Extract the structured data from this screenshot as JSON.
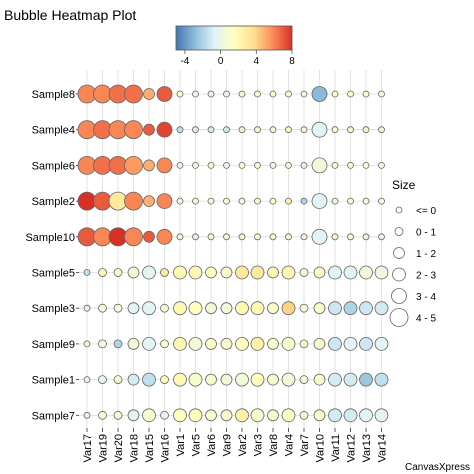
{
  "chart_data": {
    "type": "heatmap",
    "title": "Bubble Heatmap Plot",
    "credit": "CanvasXpress",
    "rows": [
      "Sample8",
      "Sample4",
      "Sample6",
      "Sample2",
      "Sample10",
      "Sample5",
      "Sample3",
      "Sample9",
      "Sample1",
      "Sample7"
    ],
    "columns": [
      "Var17",
      "Var19",
      "Var20",
      "Var18",
      "Var15",
      "Var16",
      "Var1",
      "Var5",
      "Var6",
      "Var9",
      "Var2",
      "Var3",
      "Var8",
      "Var4",
      "Var7",
      "Var10",
      "Var11",
      "Var12",
      "Var13",
      "Var14"
    ],
    "color_scale": {
      "ticks": [
        -4,
        0,
        4,
        8
      ],
      "range": [
        -5,
        8
      ],
      "colors": [
        "#4575b4",
        "#91bfdb",
        "#e0f3f8",
        "#ffffbf",
        "#fee090",
        "#fc8d59",
        "#d73027"
      ]
    },
    "size_legend": {
      "title": "Size",
      "labels": [
        "<= 0",
        "0 - 1",
        "1 - 2",
        "2 - 3",
        "3 - 4",
        "4 - 5"
      ]
    },
    "values": [
      [
        6,
        6,
        6.5,
        6.5,
        5,
        7,
        1.2,
        0.2,
        -0.5,
        -0.2,
        0.5,
        0.8,
        1,
        0.6,
        0.3,
        -3,
        1.5,
        1.5,
        1.2,
        0.3
      ],
      [
        6,
        6.5,
        6,
        6,
        7,
        7.5,
        -1.5,
        -1,
        -1,
        -1,
        0.5,
        0.8,
        0.5,
        1.2,
        0.5,
        -0.5,
        1.2,
        0.8,
        1,
        0.5
      ],
      [
        6,
        6.5,
        6.5,
        5.5,
        5,
        6,
        -0.5,
        0.5,
        0.8,
        -0.5,
        0.8,
        1,
        0.5,
        0.5,
        -0.2,
        0.5,
        1.2,
        1,
        0.8,
        0.5
      ],
      [
        8,
        7,
        3,
        6,
        5,
        6,
        0.5,
        0.8,
        0.5,
        0.8,
        0.5,
        1,
        1.5,
        2.5,
        -2,
        -0.5,
        0.2,
        1,
        0.8,
        0.5
      ],
      [
        7,
        6,
        8,
        6,
        7,
        6,
        0.5,
        -0.5,
        0.8,
        0.5,
        1,
        1,
        0.8,
        0.5,
        0.2,
        -0.5,
        0.8,
        0.5,
        0.2,
        -0.2
      ],
      [
        -1.5,
        2,
        1,
        0.5,
        -0.5,
        3,
        2,
        2,
        1.5,
        1,
        3,
        3,
        2,
        2,
        0.5,
        1,
        -0.5,
        -0.5,
        0.5,
        0.2
      ],
      [
        -0.2,
        0.5,
        0.5,
        -0.5,
        -0.5,
        0.5,
        2,
        1.5,
        0.5,
        0.5,
        2,
        2,
        1,
        4,
        0.5,
        1,
        -1.2,
        -2,
        -1.2,
        -1
      ],
      [
        0.5,
        0.5,
        -2,
        0.5,
        -0.5,
        1,
        2,
        0.5,
        1.2,
        1,
        1.5,
        2.5,
        1,
        1,
        1,
        1,
        -1.2,
        -0.5,
        -1.2,
        -0.5
      ],
      [
        -0.2,
        -0.2,
        1,
        -1,
        -1.5,
        1.5,
        2,
        1,
        1,
        0.5,
        0.5,
        1.5,
        1,
        0.5,
        0.5,
        1,
        -1,
        -1,
        -2.5,
        -1.5
      ],
      [
        0.2,
        0.5,
        0.5,
        -0.5,
        1,
        -0.5,
        1.5,
        1.5,
        1,
        1,
        2.5,
        1,
        1,
        1.5,
        0.5,
        1,
        -1,
        -1,
        -0.5,
        -0.5
      ]
    ],
    "sizes": [
      [
        5,
        5,
        5,
        5,
        2,
        4,
        0,
        0,
        0,
        0,
        0,
        0,
        0,
        0,
        0,
        4,
        0,
        0,
        0,
        0
      ],
      [
        5,
        5,
        5,
        5,
        2,
        4,
        0,
        0,
        0,
        0,
        0,
        0,
        0,
        0,
        0,
        4,
        0,
        0,
        0,
        0
      ],
      [
        5,
        5,
        5,
        5,
        2,
        4,
        0,
        0,
        0,
        0,
        0,
        0,
        0,
        0,
        0,
        4,
        0,
        0,
        0,
        0
      ],
      [
        5,
        5,
        5,
        5,
        2,
        4,
        0,
        0,
        0,
        0,
        0,
        0,
        0,
        0,
        0,
        4,
        0,
        0,
        0,
        0
      ],
      [
        5,
        5,
        5,
        5,
        2,
        4,
        0,
        0,
        0,
        0,
        0,
        0,
        0,
        0,
        0,
        4,
        0,
        0,
        0,
        0
      ],
      [
        0,
        1,
        1,
        2,
        3,
        1,
        3,
        3,
        2,
        2,
        3,
        3,
        2,
        3,
        1,
        2,
        3,
        3,
        3,
        3
      ],
      [
        0,
        1,
        1,
        2,
        3,
        1,
        3,
        3,
        2,
        2,
        3,
        3,
        2,
        3,
        1,
        2,
        3,
        3,
        3,
        3
      ],
      [
        0,
        1,
        1,
        2,
        3,
        1,
        3,
        3,
        2,
        2,
        3,
        3,
        2,
        3,
        1,
        2,
        3,
        3,
        3,
        3
      ],
      [
        0,
        1,
        1,
        2,
        3,
        1,
        3,
        3,
        2,
        2,
        3,
        3,
        2,
        3,
        1,
        2,
        3,
        3,
        3,
        3
      ],
      [
        0,
        1,
        1,
        2,
        3,
        1,
        3,
        3,
        2,
        2,
        3,
        3,
        2,
        3,
        1,
        2,
        3,
        3,
        3,
        3
      ]
    ]
  }
}
